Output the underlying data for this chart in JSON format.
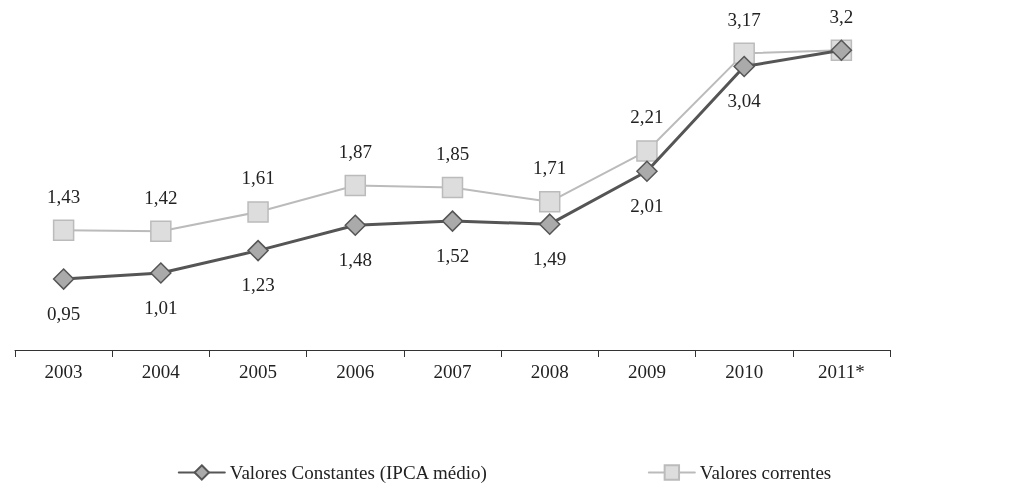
{
  "chart_data": {
    "type": "line",
    "categories": [
      "2003",
      "2004",
      "2005",
      "2006",
      "2007",
      "2008",
      "2009",
      "2010",
      "2011*"
    ],
    "series": [
      {
        "name": "Valores Constantes (IPCA médio)",
        "color": "#555555",
        "marker": "diamond",
        "values": [
          0.95,
          1.01,
          1.23,
          1.48,
          1.52,
          1.49,
          2.01,
          3.04,
          3.2
        ],
        "value_labels": [
          "0,95",
          "1,01",
          "1,23",
          "1,48",
          "1,52",
          "1,49",
          "2,01",
          "3,04",
          null
        ]
      },
      {
        "name": "Valores correntes",
        "color": "#bbbbbb",
        "marker": "square",
        "values": [
          1.43,
          1.42,
          1.61,
          1.87,
          1.85,
          1.71,
          2.21,
          3.17,
          3.2
        ],
        "value_labels": [
          "1,43",
          "1,42",
          "1,61",
          "1,87",
          "1,85",
          "1,71",
          "2,21",
          "3,17",
          "3,2"
        ]
      }
    ],
    "legend": "bottom",
    "tick_labels": "x",
    "grid": false,
    "line_style": "solid"
  }
}
